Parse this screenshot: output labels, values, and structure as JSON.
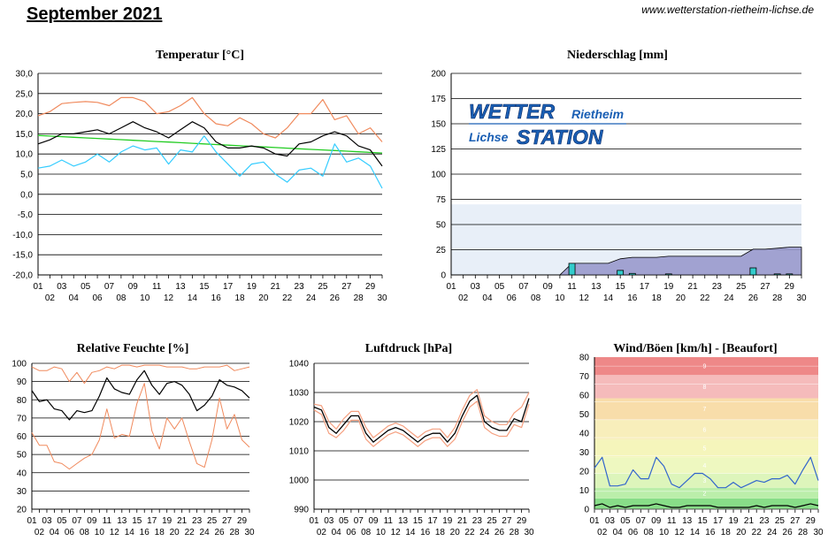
{
  "page": {
    "title": "September 2021",
    "url": "www.wetterstation-rietheim-lichse.de"
  },
  "logo": {
    "line1": "WETTER",
    "line1_small": "Rietheim",
    "line2_small": "Lichse",
    "line2": "STATION"
  },
  "colors": {
    "max": "#f08a5d",
    "min": "#33ccff",
    "mean": "#000000",
    "trend": "#22cc22",
    "rain_fill": "#9999cc",
    "rain_bar": "#33cccc",
    "pressure_band": "#f5a080",
    "wind": "#3366cc",
    "gust": "#000000"
  },
  "chart_data": [
    {
      "id": "temp",
      "type": "line",
      "title": "Temperatur [°C]",
      "ylim": [
        -20,
        30
      ],
      "yticks": [
        "30,0",
        "25,0",
        "20,0",
        "15,0",
        "10,0",
        "5,0",
        "0,0",
        "-5,0",
        "-10,0",
        "-15,0",
        "-20,0"
      ],
      "x": [
        1,
        2,
        3,
        4,
        5,
        6,
        7,
        8,
        9,
        10,
        11,
        12,
        13,
        14,
        15,
        16,
        17,
        18,
        19,
        20,
        21,
        22,
        23,
        24,
        25,
        26,
        27,
        28,
        29,
        30
      ],
      "xticks_top": [
        "01",
        "03",
        "05",
        "07",
        "09",
        "11",
        "13",
        "15",
        "17",
        "19",
        "21",
        "23",
        "25",
        "27",
        "29"
      ],
      "xticks_bottom": [
        "02",
        "04",
        "06",
        "08",
        "10",
        "12",
        "14",
        "16",
        "18",
        "20",
        "22",
        "24",
        "26",
        "28",
        "30"
      ],
      "series": [
        {
          "key": "max",
          "values": [
            19.5,
            20.5,
            22.5,
            22.8,
            23.0,
            22.8,
            22.0,
            24.0,
            24.0,
            23.0,
            20.0,
            20.5,
            22.0,
            24.0,
            20.0,
            17.5,
            17.0,
            19.0,
            17.5,
            15.0,
            14.0,
            16.5,
            20.0,
            20.0,
            23.5,
            18.5,
            19.5,
            15.0,
            16.5,
            13.0
          ]
        },
        {
          "key": "mean",
          "values": [
            12.5,
            13.5,
            15.0,
            15.0,
            15.5,
            16.0,
            15.0,
            16.5,
            18.0,
            16.5,
            15.5,
            14.0,
            16.0,
            18.0,
            16.5,
            13.0,
            11.5,
            11.5,
            12.0,
            11.5,
            10.0,
            9.5,
            12.5,
            13.0,
            14.5,
            15.5,
            14.5,
            12.0,
            11.0,
            7.0
          ]
        },
        {
          "key": "min",
          "values": [
            6.5,
            7.0,
            8.5,
            7.0,
            8.0,
            10.0,
            8.0,
            10.5,
            12.0,
            11.0,
            11.5,
            7.5,
            11.0,
            10.5,
            14.5,
            10.5,
            7.5,
            4.5,
            7.5,
            8.0,
            5.0,
            3.0,
            6.0,
            6.5,
            4.5,
            12.5,
            8.0,
            9.0,
            7.0,
            1.5
          ]
        },
        {
          "key": "trend",
          "values": [
            14.6,
            14.45,
            14.3,
            14.15,
            14.0,
            13.85,
            13.7,
            13.55,
            13.4,
            13.25,
            13.1,
            12.95,
            12.8,
            12.65,
            12.5,
            12.35,
            12.2,
            12.05,
            11.9,
            11.75,
            11.6,
            11.45,
            11.3,
            11.15,
            11.0,
            10.85,
            10.7,
            10.55,
            10.4,
            10.25
          ]
        }
      ]
    },
    {
      "id": "rain",
      "type": "area",
      "title": "Niederschlag [mm]",
      "ylim": [
        0,
        200
      ],
      "yticks": [
        "200",
        "175",
        "150",
        "125",
        "100",
        "75",
        "50",
        "25",
        "0"
      ],
      "x": [
        1,
        2,
        3,
        4,
        5,
        6,
        7,
        8,
        9,
        10,
        11,
        12,
        13,
        14,
        15,
        16,
        17,
        18,
        19,
        20,
        21,
        22,
        23,
        24,
        25,
        26,
        27,
        28,
        29,
        30
      ],
      "xticks_top": [
        "01",
        "03",
        "05",
        "07",
        "09",
        "11",
        "13",
        "15",
        "17",
        "19",
        "21",
        "23",
        "25",
        "27",
        "29"
      ],
      "xticks_bottom": [
        "02",
        "04",
        "06",
        "08",
        "10",
        "12",
        "14",
        "16",
        "18",
        "20",
        "22",
        "24",
        "26",
        "28",
        "30"
      ],
      "shaded_band": [
        0,
        70
      ],
      "daily": [
        0,
        0,
        0,
        0,
        0,
        0,
        0,
        0,
        0,
        0,
        11.5,
        0,
        0,
        0,
        4.5,
        1.5,
        0,
        0,
        1.0,
        0,
        0,
        0,
        0,
        0,
        0,
        7.0,
        0,
        1.0,
        1.0,
        0
      ],
      "cumulative": [
        0,
        0,
        0,
        0,
        0,
        0,
        0,
        0,
        0,
        0,
        11.5,
        11.5,
        11.5,
        11.5,
        16.0,
        17.5,
        17.5,
        17.5,
        18.5,
        18.5,
        18.5,
        18.5,
        18.5,
        18.5,
        18.5,
        25.5,
        25.5,
        26.5,
        27.5,
        27.5
      ]
    },
    {
      "id": "humidity",
      "type": "line",
      "title": "Relative Feuchte [%]",
      "ylim": [
        20,
        100
      ],
      "yticks": [
        "100",
        "90",
        "80",
        "70",
        "60",
        "50",
        "40",
        "30",
        "20"
      ],
      "x": [
        1,
        2,
        3,
        4,
        5,
        6,
        7,
        8,
        9,
        10,
        11,
        12,
        13,
        14,
        15,
        16,
        17,
        18,
        19,
        20,
        21,
        22,
        23,
        24,
        25,
        26,
        27,
        28,
        29,
        30
      ],
      "xticks_top": [
        "01",
        "03",
        "05",
        "07",
        "09",
        "11",
        "13",
        "15",
        "17",
        "19",
        "21",
        "23",
        "25",
        "27",
        "29"
      ],
      "xticks_bottom": [
        "02",
        "04",
        "06",
        "08",
        "10",
        "12",
        "14",
        "16",
        "18",
        "20",
        "22",
        "24",
        "26",
        "28",
        "30"
      ],
      "series": [
        {
          "key": "max",
          "values": [
            98,
            96,
            96,
            98,
            97,
            90,
            95,
            89,
            95,
            96,
            98,
            97,
            99,
            99,
            98,
            99,
            99,
            99,
            98,
            98,
            98,
            97,
            97,
            98,
            98,
            98,
            99,
            96,
            97,
            98
          ]
        },
        {
          "key": "mean",
          "values": [
            85,
            79,
            80,
            75,
            74,
            69,
            74,
            73,
            74,
            82,
            92,
            86,
            84,
            83,
            91,
            96,
            88,
            83,
            89,
            90,
            88,
            83,
            74,
            77,
            82,
            91,
            88,
            87,
            85,
            81
          ]
        },
        {
          "key": "min",
          "values": [
            62,
            55,
            55,
            46,
            45,
            42,
            45,
            48,
            50,
            58,
            75,
            59,
            61,
            60,
            78,
            89,
            63,
            53,
            70,
            64,
            70,
            57,
            45,
            43,
            58,
            81,
            64,
            72,
            58,
            54
          ]
        }
      ]
    },
    {
      "id": "pressure",
      "type": "line",
      "title": "Luftdruck [hPa]",
      "ylim": [
        990,
        1040
      ],
      "yticks": [
        "1040",
        "1030",
        "1020",
        "1010",
        "1000",
        "990"
      ],
      "x": [
        1,
        2,
        3,
        4,
        5,
        6,
        7,
        8,
        9,
        10,
        11,
        12,
        13,
        14,
        15,
        16,
        17,
        18,
        19,
        20,
        21,
        22,
        23,
        24,
        25,
        26,
        27,
        28,
        29,
        30
      ],
      "xticks_top": [
        "01",
        "03",
        "05",
        "07",
        "09",
        "11",
        "13",
        "15",
        "17",
        "19",
        "21",
        "23",
        "25",
        "27",
        "29"
      ],
      "xticks_bottom": [
        "02",
        "04",
        "06",
        "08",
        "10",
        "12",
        "14",
        "16",
        "18",
        "20",
        "22",
        "24",
        "26",
        "28",
        "30"
      ],
      "series": [
        {
          "key": "mean",
          "values": [
            1025,
            1024,
            1018,
            1016,
            1019,
            1022,
            1022,
            1016,
            1013,
            1015,
            1017,
            1018,
            1017,
            1015,
            1013,
            1015,
            1016,
            1016,
            1013,
            1016,
            1022,
            1027,
            1029,
            1020,
            1018,
            1017,
            1017,
            1021,
            1020,
            1028
          ]
        },
        {
          "key": "max",
          "values": [
            1026,
            1025.5,
            1020,
            1017.5,
            1021,
            1023.5,
            1023.5,
            1018,
            1014.5,
            1016.5,
            1018.5,
            1019.5,
            1018.5,
            1016.5,
            1014.5,
            1016.5,
            1017.5,
            1017.5,
            1014.5,
            1018,
            1024,
            1029,
            1031,
            1022,
            1020,
            1019,
            1019,
            1023,
            1025,
            1030
          ]
        },
        {
          "key": "min",
          "values": [
            1024,
            1022.5,
            1016,
            1014.5,
            1017,
            1020.5,
            1020.5,
            1014,
            1011.5,
            1013.5,
            1015.5,
            1016.5,
            1015.5,
            1013.5,
            1011.5,
            1013.5,
            1014.5,
            1014.5,
            1011.5,
            1014,
            1020,
            1025,
            1027,
            1018,
            1016,
            1015,
            1015,
            1019,
            1018,
            1026
          ]
        }
      ]
    },
    {
      "id": "wind",
      "type": "line",
      "title": "Wind/Böen [km/h] - [Beaufort]",
      "ylim": [
        0,
        85
      ],
      "yticks": [
        "80",
        "70",
        "60",
        "50",
        "40",
        "30",
        "20",
        "10",
        "0"
      ],
      "x": [
        1,
        2,
        3,
        4,
        5,
        6,
        7,
        8,
        9,
        10,
        11,
        12,
        13,
        14,
        15,
        16,
        17,
        18,
        19,
        20,
        21,
        22,
        23,
        24,
        25,
        26,
        27,
        28,
        29,
        30
      ],
      "xticks_top": [
        "01",
        "03",
        "05",
        "07",
        "09",
        "11",
        "13",
        "15",
        "17",
        "19",
        "21",
        "23",
        "25",
        "27",
        "29"
      ],
      "xticks_bottom": [
        "02",
        "04",
        "06",
        "08",
        "10",
        "12",
        "14",
        "16",
        "18",
        "20",
        "22",
        "24",
        "26",
        "28",
        "30"
      ],
      "beaufort": [
        {
          "label": "",
          "lo": 0,
          "hi": 6,
          "color": "#88dd88"
        },
        {
          "label": "2",
          "lo": 6,
          "hi": 12,
          "color": "#bbeeaa"
        },
        {
          "label": "3",
          "lo": 12,
          "hi": 20,
          "color": "#ddf5bb"
        },
        {
          "label": "4",
          "lo": 20,
          "hi": 29,
          "color": "#eef8c0"
        },
        {
          "label": "5",
          "lo": 29,
          "hi": 39,
          "color": "#f5f5bb"
        },
        {
          "label": "6",
          "lo": 39,
          "hi": 50,
          "color": "#f8eebb"
        },
        {
          "label": "7",
          "lo": 50,
          "hi": 62,
          "color": "#f8ddaa"
        },
        {
          "label": "8",
          "lo": 62,
          "hi": 75,
          "color": "#f5bbbb"
        },
        {
          "label": "9",
          "lo": 75,
          "hi": 88,
          "color": "#ee8888"
        }
      ],
      "series": [
        {
          "key": "gust",
          "values": [
            23,
            29,
            13,
            13,
            14,
            22,
            17,
            17,
            29,
            24,
            14,
            12,
            16,
            20,
            20,
            17,
            12,
            12,
            15,
            12,
            14,
            16,
            15,
            17,
            17,
            19,
            14,
            22,
            29,
            16
          ]
        },
        {
          "key": "wind",
          "values": [
            2,
            3,
            1,
            2,
            1,
            2,
            2,
            2,
            3,
            2,
            1,
            1,
            2,
            2,
            2,
            2,
            1,
            1,
            1,
            1,
            1,
            2,
            1,
            2,
            2,
            2,
            1,
            2,
            3,
            2
          ]
        }
      ]
    }
  ]
}
